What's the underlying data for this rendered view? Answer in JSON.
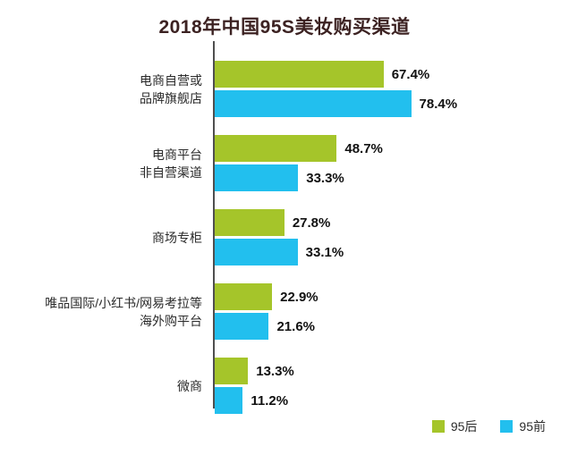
{
  "title": "2018年中国95S美妆购买渠道",
  "chart_data": {
    "type": "bar",
    "orientation": "horizontal",
    "title": "2018年中国95S美妆购买渠道",
    "categories": [
      "电商自营或\n品牌旗舰店",
      "电商平台\n非自营渠道",
      "商场专柜",
      "唯品国际/小红书/网易考拉等\n海外购平台",
      "微商"
    ],
    "series": [
      {
        "name": "95后",
        "color": "#a5c52a",
        "values": [
          67.4,
          48.7,
          27.8,
          22.9,
          13.3
        ]
      },
      {
        "name": "95前",
        "color": "#22bfee",
        "values": [
          78.4,
          33.3,
          33.1,
          21.6,
          11.2
        ]
      }
    ],
    "value_suffix": "%",
    "xlim": [
      0,
      100
    ],
    "grid": false,
    "legend_position": "bottom-right",
    "axis_color": "#4f4f4f"
  }
}
